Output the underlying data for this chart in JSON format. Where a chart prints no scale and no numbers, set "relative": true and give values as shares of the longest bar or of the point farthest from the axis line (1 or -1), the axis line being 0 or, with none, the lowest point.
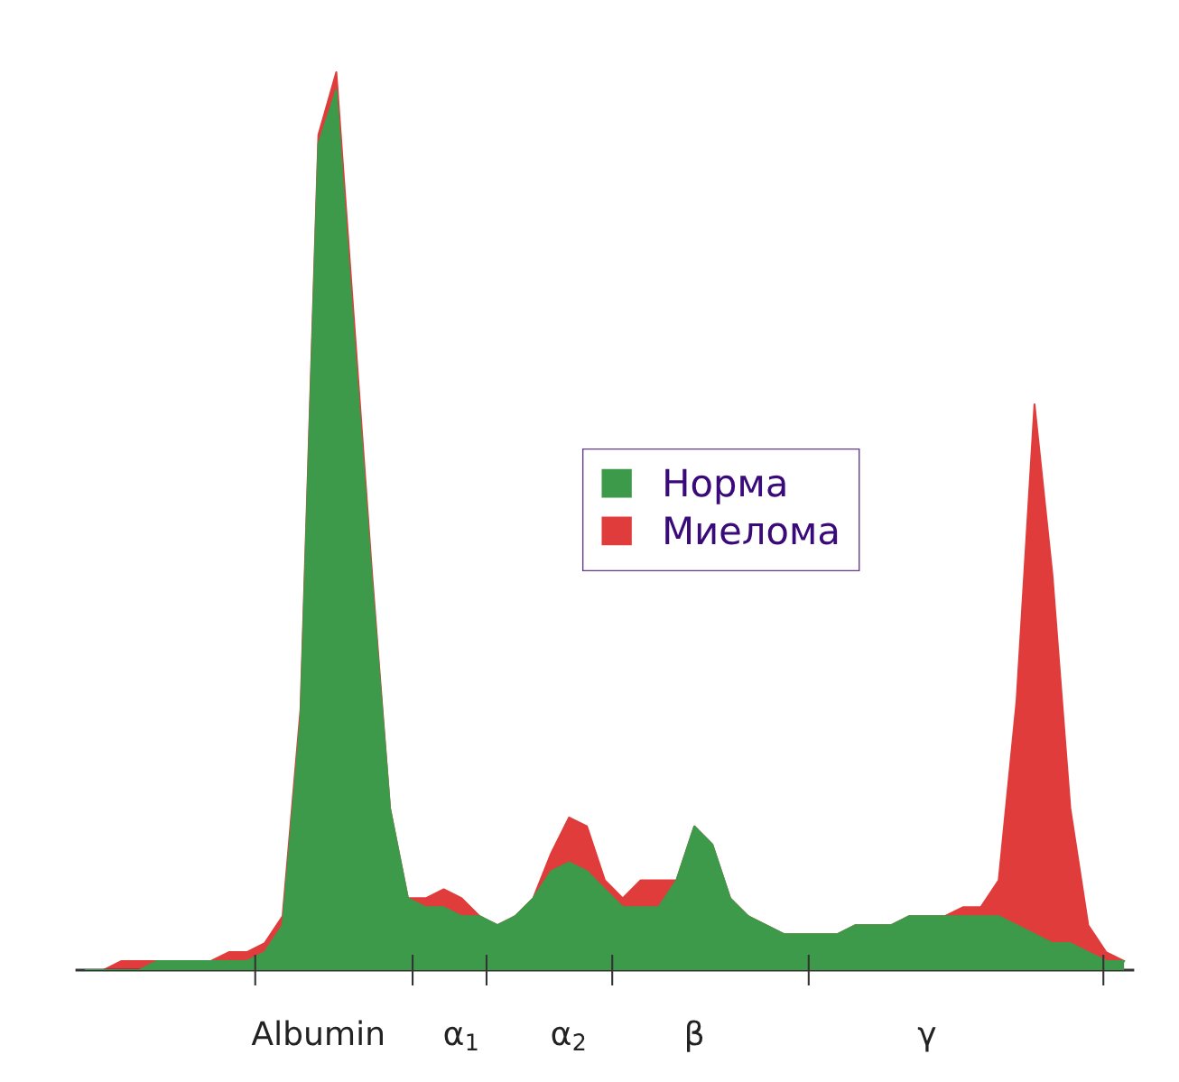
{
  "chart_data": {
    "type": "area",
    "relative": true,
    "categories": [
      null,
      null,
      null,
      null,
      null,
      null,
      null,
      null,
      null,
      null,
      null,
      null,
      null,
      "Albumin",
      null,
      null,
      null,
      null,
      null,
      null,
      null,
      "α$_{1}$",
      null,
      null,
      null,
      null,
      null,
      "α$_{2}$",
      null,
      null,
      null,
      null,
      null,
      null,
      "β",
      null,
      null,
      null,
      null,
      null,
      null,
      null,
      null,
      null,
      null,
      null,
      null,
      "γ",
      null,
      null,
      null,
      null,
      null,
      null,
      null,
      null,
      null,
      null,
      null
    ],
    "tick_labels": "x",
    "grid": false,
    "legend": "center",
    "series": [
      {
        "name": "Норма",
        "color": "#3d9a4a",
        "values": [
          0,
          0.0,
          0.0,
          0.0,
          0.01,
          0.01,
          0.01,
          0.01,
          0.01,
          0.01,
          0.02,
          0.05,
          0.28,
          0.92,
          0.98,
          0.7,
          0.43,
          0.18,
          0.08,
          0.07,
          0.07,
          0.06,
          0.06,
          0.05,
          0.06,
          0.08,
          0.11,
          0.12,
          0.11,
          0.09,
          0.07,
          0.07,
          0.07,
          0.1,
          0.16,
          0.14,
          0.08,
          0.06,
          0.05,
          0.04,
          0.04,
          0.04,
          0.04,
          0.05,
          0.05,
          0.05,
          0.06,
          0.06,
          0.06,
          0.06,
          0.06,
          0.06,
          0.05,
          0.04,
          0.03,
          0.03,
          0.02,
          0.01,
          0.01
        ]
      },
      {
        "name": "Миелома",
        "color": "#e03c3c",
        "values": [
          0.0,
          0.0,
          0.01,
          0.01,
          0.01,
          0.01,
          0.01,
          0.01,
          0.02,
          0.02,
          0.03,
          0.06,
          0.29,
          0.93,
          1.0,
          0.72,
          0.44,
          0.18,
          0.08,
          0.08,
          0.09,
          0.08,
          0.06,
          0.05,
          0.06,
          0.08,
          0.13,
          0.17,
          0.16,
          0.1,
          0.08,
          0.1,
          0.1,
          0.1,
          0.16,
          0.14,
          0.08,
          0.06,
          0.05,
          0.04,
          0.04,
          0.04,
          0.04,
          0.05,
          0.05,
          0.05,
          0.06,
          0.06,
          0.06,
          0.07,
          0.07,
          0.1,
          0.3,
          0.63,
          0.44,
          0.18,
          0.05,
          0.02,
          0.01
        ]
      }
    ]
  }
}
